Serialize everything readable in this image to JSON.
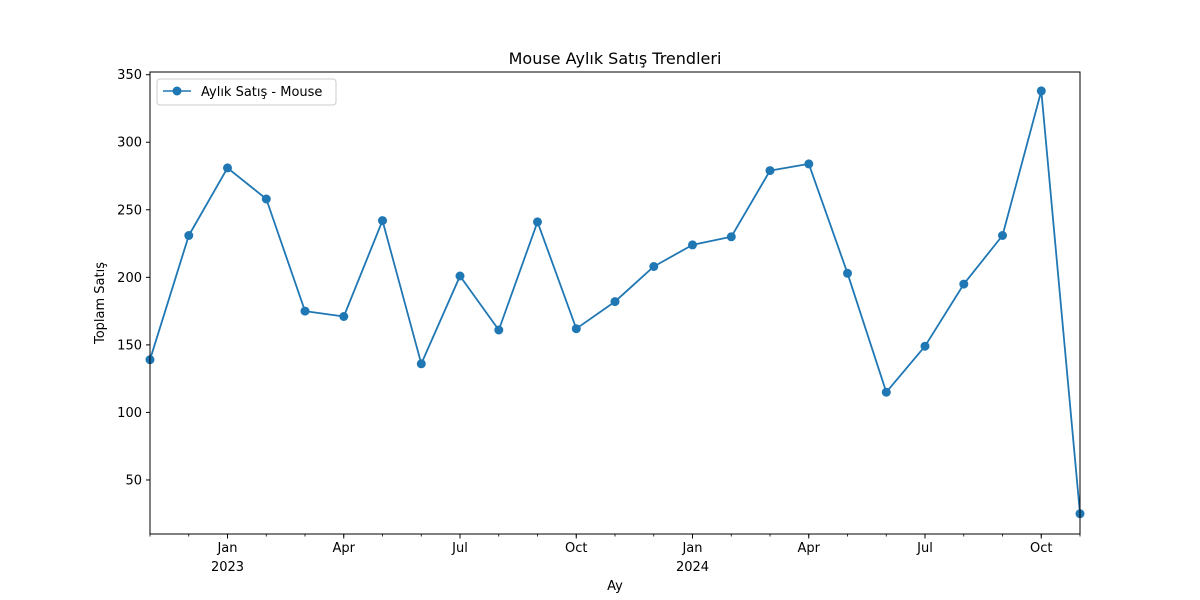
{
  "chart_data": {
    "type": "line",
    "title": "Mouse Aylık Satış Trendleri",
    "xlabel": "Ay",
    "ylabel": "Toplam Satış",
    "x": [
      "2022-11",
      "2022-12",
      "2023-01",
      "2023-02",
      "2023-03",
      "2023-04",
      "2023-05",
      "2023-06",
      "2023-07",
      "2023-08",
      "2023-09",
      "2023-10",
      "2023-11",
      "2023-12",
      "2024-01",
      "2024-02",
      "2024-03",
      "2024-04",
      "2024-05",
      "2024-06",
      "2024-07",
      "2024-08",
      "2024-09",
      "2024-10",
      "2024-11"
    ],
    "series": [
      {
        "name": "Aylık Satış - Mouse",
        "color": "#1f77b4",
        "marker": "circle",
        "values": [
          139,
          231,
          281,
          258,
          175,
          171,
          242,
          136,
          201,
          161,
          241,
          162,
          182,
          208,
          224,
          230,
          279,
          284,
          203,
          115,
          149,
          195,
          231,
          338,
          25
        ]
      }
    ],
    "ylim": [
      10,
      352
    ],
    "yticks": [
      50,
      100,
      150,
      200,
      250,
      300,
      350
    ],
    "xticks": [
      {
        "x": "2023-01",
        "label": "Jan",
        "year": "2023"
      },
      {
        "x": "2023-04",
        "label": "Apr",
        "year": ""
      },
      {
        "x": "2023-07",
        "label": "Jul",
        "year": ""
      },
      {
        "x": "2023-10",
        "label": "Oct",
        "year": ""
      },
      {
        "x": "2024-01",
        "label": "Jan",
        "year": "2024"
      },
      {
        "x": "2024-04",
        "label": "Apr",
        "year": ""
      },
      {
        "x": "2024-07",
        "label": "Jul",
        "year": ""
      },
      {
        "x": "2024-10",
        "label": "Oct",
        "year": ""
      }
    ],
    "grid": false,
    "legend_position": "upper-left"
  }
}
